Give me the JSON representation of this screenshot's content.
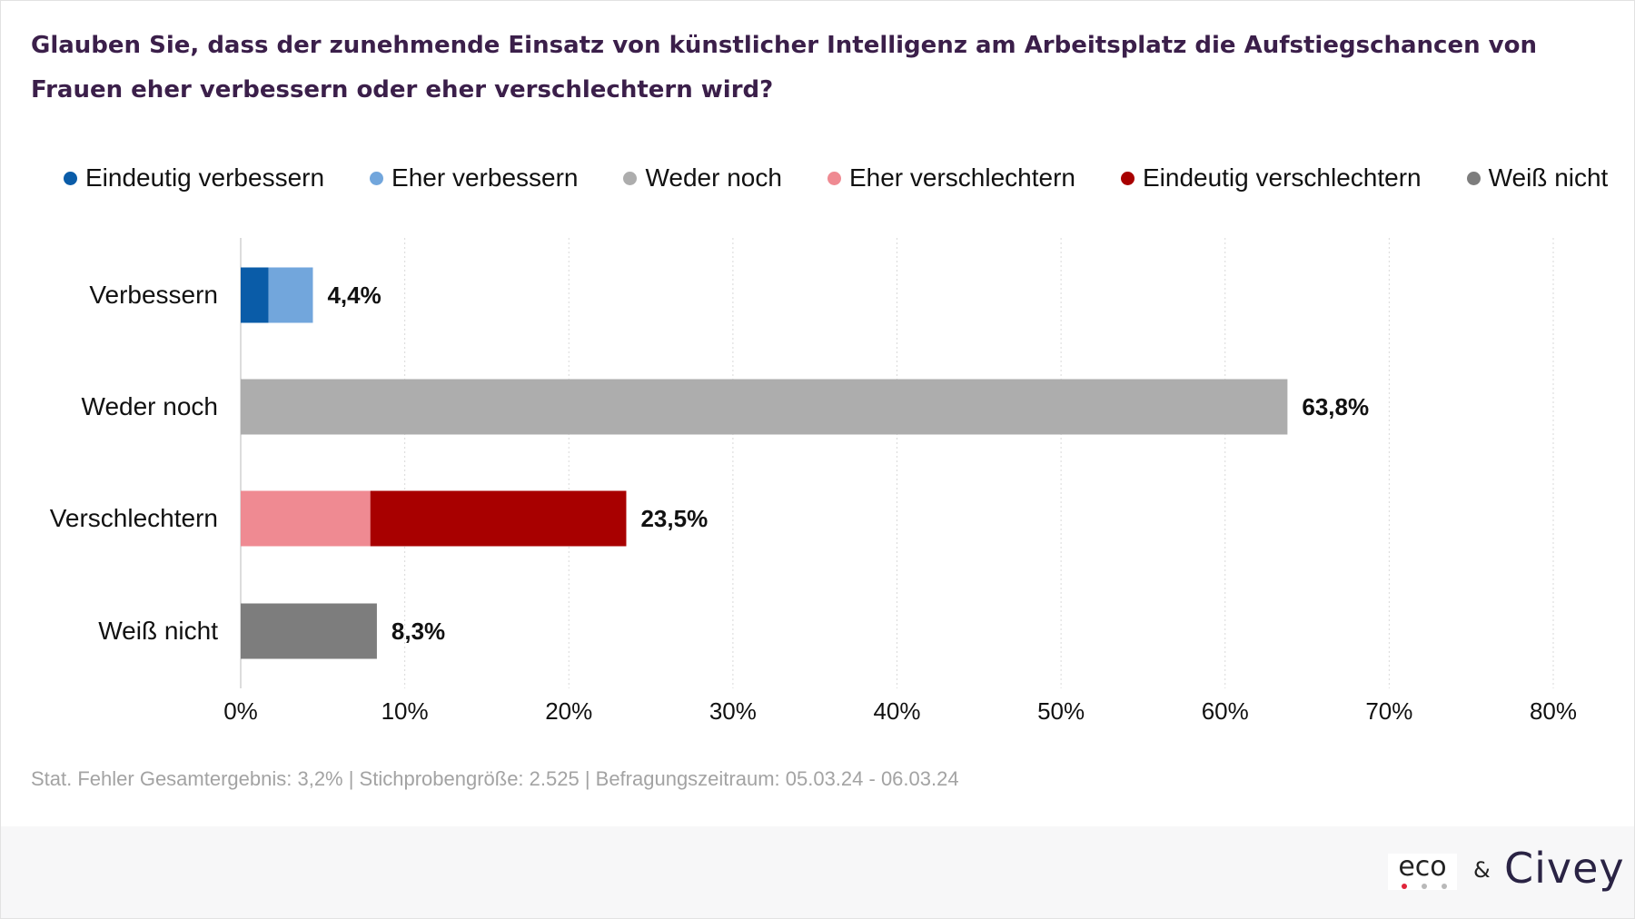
{
  "title": "Glauben Sie, dass der zunehmende Einsatz von künstlicher Intelligenz am Arbeitsplatz die Aufstiegschancen von Frauen eher verbessern oder eher verschlechtern wird?",
  "legend": [
    {
      "label": "Eindeutig verbessern",
      "color": "#0a5ca8"
    },
    {
      "label": "Eher verbessern",
      "color": "#72a6dc"
    },
    {
      "label": "Weder noch",
      "color": "#adadad"
    },
    {
      "label": "Eher verschlechtern",
      "color": "#ef8a92"
    },
    {
      "label": "Eindeutig verschlechtern",
      "color": "#a80000"
    },
    {
      "label": "Weiß nicht",
      "color": "#7d7d7d"
    }
  ],
  "chart_data": {
    "type": "bar",
    "orientation": "horizontal",
    "stacked": true,
    "categories": [
      "Verbessern",
      "Weder noch",
      "Verschlechtern",
      "Weiß nicht"
    ],
    "series": [
      {
        "name": "Eindeutig verbessern",
        "color": "#0a5ca8",
        "values": [
          1.7,
          0,
          0,
          0
        ]
      },
      {
        "name": "Eher verbessern",
        "color": "#72a6dc",
        "values": [
          2.7,
          0,
          0,
          0
        ]
      },
      {
        "name": "Weder noch",
        "color": "#adadad",
        "values": [
          0,
          63.8,
          0,
          0
        ]
      },
      {
        "name": "Eher verschlechtern",
        "color": "#ef8a92",
        "values": [
          0,
          0,
          7.9,
          0
        ]
      },
      {
        "name": "Eindeutig verschlechtern",
        "color": "#a80000",
        "values": [
          0,
          0,
          15.6,
          0
        ]
      },
      {
        "name": "Weiß nicht",
        "color": "#7d7d7d",
        "values": [
          0,
          0,
          0,
          8.3
        ]
      }
    ],
    "totals": [
      4.4,
      63.8,
      23.5,
      8.3
    ],
    "total_labels": [
      "4,4%",
      "63,8%",
      "23,5%",
      "8,3%"
    ],
    "xlim": [
      0,
      80
    ],
    "xticks": [
      0,
      10,
      20,
      30,
      40,
      50,
      60,
      70,
      80
    ],
    "xtick_labels": [
      "0%",
      "10%",
      "20%",
      "30%",
      "40%",
      "50%",
      "60%",
      "70%",
      "80%"
    ],
    "grid": true,
    "legend_position": "top"
  },
  "footnote": "Stat. Fehler Gesamtergebnis: 3,2% | Stichprobengröße: 2.525 | Befragungszeitraum: 05.03.24 - 06.03.24",
  "logos": {
    "eco": "eco",
    "ampersand": "&",
    "civey": "Civey",
    "eco_dot_colors": [
      "#e0253a",
      "#b9b9b9",
      "#b9b9b9"
    ]
  }
}
